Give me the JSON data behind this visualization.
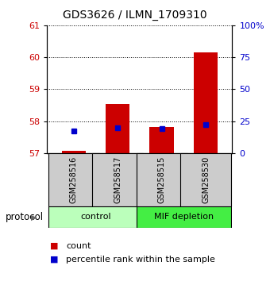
{
  "title": "GDS3626 / ILMN_1709310",
  "samples": [
    "GSM258516",
    "GSM258517",
    "GSM258515",
    "GSM258530"
  ],
  "count_values": [
    57.07,
    58.55,
    57.82,
    60.15
  ],
  "percentile_values": [
    17.5,
    20.0,
    19.0,
    22.0
  ],
  "count_base": 57.0,
  "ylim_left": [
    57,
    61
  ],
  "ylim_right": [
    0,
    100
  ],
  "yticks_left": [
    57,
    58,
    59,
    60,
    61
  ],
  "yticks_right": [
    0,
    25,
    50,
    75,
    100
  ],
  "ytick_labels_right": [
    "0",
    "25",
    "50",
    "75",
    "100%"
  ],
  "bar_color": "#cc0000",
  "percentile_color": "#0000cc",
  "groups": [
    {
      "label": "control",
      "indices": [
        0,
        1
      ],
      "color": "#bbffbb"
    },
    {
      "label": "MIF depletion",
      "indices": [
        2,
        3
      ],
      "color": "#44ee44"
    }
  ],
  "tick_label_color_left": "#cc0000",
  "tick_label_color_right": "#0000cc",
  "bar_width": 0.55,
  "label_box_bg": "#cccccc",
  "legend_count_label": "count",
  "legend_percentile_label": "percentile rank within the sample"
}
